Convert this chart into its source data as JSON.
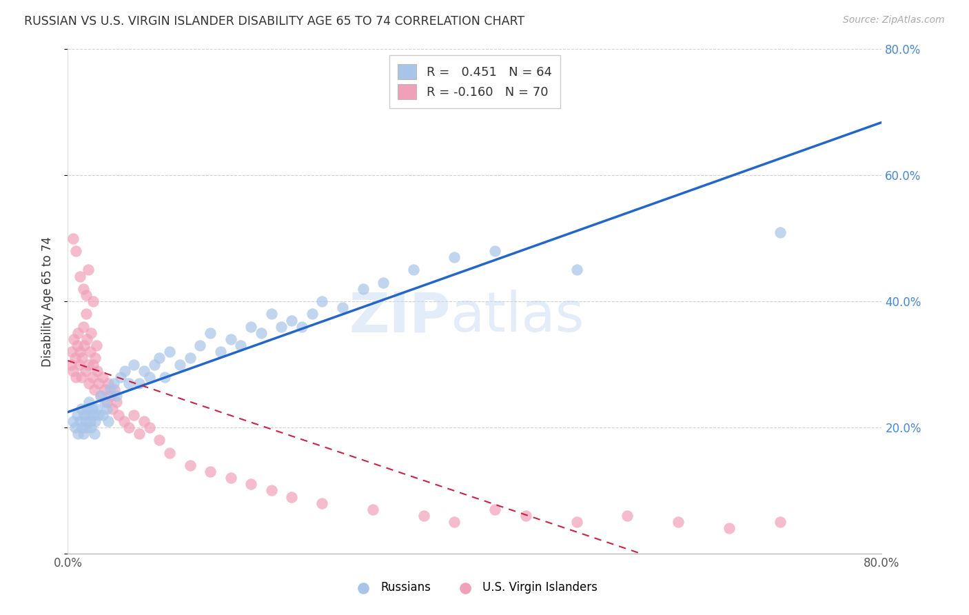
{
  "title": "RUSSIAN VS U.S. VIRGIN ISLANDER DISABILITY AGE 65 TO 74 CORRELATION CHART",
  "source": "Source: ZipAtlas.com",
  "ylabel": "Disability Age 65 to 74",
  "xlim": [
    0.0,
    0.8
  ],
  "ylim": [
    0.0,
    0.8
  ],
  "xticks": [
    0.0,
    0.1,
    0.2,
    0.3,
    0.4,
    0.5,
    0.6,
    0.7,
    0.8
  ],
  "xticklabels": [
    "0.0%",
    "",
    "",
    "",
    "",
    "",
    "",
    "",
    "80.0%"
  ],
  "yticks_right": [
    0.2,
    0.4,
    0.6,
    0.8
  ],
  "ytick_labels_right": [
    "20.0%",
    "40.0%",
    "60.0%",
    "80.0%"
  ],
  "russian_R": "0.451",
  "russian_N": 64,
  "virgin_R": "-0.160",
  "virgin_N": 70,
  "russian_color": "#a8c4e8",
  "virgin_color": "#f0a0b8",
  "russian_line_color": "#2266cc",
  "virgin_line_color": "#cc2244",
  "watermark_zip": "ZIP",
  "watermark_atlas": "atlas",
  "background_color": "#ffffff",
  "grid_color": "#cccccc",
  "russian_x": [
    0.005,
    0.007,
    0.009,
    0.01,
    0.012,
    0.013,
    0.014,
    0.015,
    0.016,
    0.017,
    0.018,
    0.019,
    0.02,
    0.021,
    0.022,
    0.023,
    0.024,
    0.025,
    0.026,
    0.027,
    0.028,
    0.03,
    0.032,
    0.034,
    0.036,
    0.038,
    0.04,
    0.042,
    0.045,
    0.048,
    0.052,
    0.056,
    0.06,
    0.065,
    0.07,
    0.075,
    0.08,
    0.085,
    0.09,
    0.095,
    0.1,
    0.11,
    0.12,
    0.13,
    0.14,
    0.15,
    0.16,
    0.17,
    0.18,
    0.19,
    0.2,
    0.21,
    0.22,
    0.23,
    0.24,
    0.25,
    0.27,
    0.29,
    0.31,
    0.34,
    0.38,
    0.42,
    0.5,
    0.7
  ],
  "russian_y": [
    0.21,
    0.2,
    0.22,
    0.19,
    0.21,
    0.23,
    0.2,
    0.19,
    0.22,
    0.21,
    0.2,
    0.23,
    0.22,
    0.24,
    0.21,
    0.2,
    0.23,
    0.22,
    0.19,
    0.21,
    0.23,
    0.22,
    0.25,
    0.22,
    0.24,
    0.23,
    0.21,
    0.26,
    0.27,
    0.25,
    0.28,
    0.29,
    0.27,
    0.3,
    0.27,
    0.29,
    0.28,
    0.3,
    0.31,
    0.28,
    0.32,
    0.3,
    0.31,
    0.33,
    0.35,
    0.32,
    0.34,
    0.33,
    0.36,
    0.35,
    0.38,
    0.36,
    0.37,
    0.36,
    0.38,
    0.4,
    0.39,
    0.42,
    0.43,
    0.45,
    0.47,
    0.48,
    0.45,
    0.51
  ],
  "virgin_x": [
    0.003,
    0.004,
    0.005,
    0.006,
    0.007,
    0.008,
    0.009,
    0.01,
    0.011,
    0.012,
    0.013,
    0.014,
    0.015,
    0.016,
    0.017,
    0.018,
    0.019,
    0.02,
    0.021,
    0.022,
    0.023,
    0.024,
    0.025,
    0.026,
    0.027,
    0.028,
    0.029,
    0.03,
    0.032,
    0.034,
    0.036,
    0.038,
    0.04,
    0.042,
    0.044,
    0.046,
    0.048,
    0.05,
    0.055,
    0.06,
    0.065,
    0.07,
    0.075,
    0.08,
    0.09,
    0.1,
    0.12,
    0.14,
    0.16,
    0.18,
    0.2,
    0.22,
    0.25,
    0.3,
    0.35,
    0.38,
    0.42,
    0.45,
    0.5,
    0.55,
    0.6,
    0.65,
    0.7,
    0.015,
    0.02,
    0.025,
    0.005,
    0.008,
    0.012,
    0.018
  ],
  "virgin_y": [
    0.3,
    0.32,
    0.29,
    0.34,
    0.31,
    0.28,
    0.33,
    0.35,
    0.3,
    0.32,
    0.28,
    0.31,
    0.36,
    0.33,
    0.29,
    0.38,
    0.34,
    0.3,
    0.27,
    0.32,
    0.35,
    0.28,
    0.3,
    0.26,
    0.31,
    0.33,
    0.29,
    0.27,
    0.25,
    0.28,
    0.26,
    0.24,
    0.27,
    0.25,
    0.23,
    0.26,
    0.24,
    0.22,
    0.21,
    0.2,
    0.22,
    0.19,
    0.21,
    0.2,
    0.18,
    0.16,
    0.14,
    0.13,
    0.12,
    0.11,
    0.1,
    0.09,
    0.08,
    0.07,
    0.06,
    0.05,
    0.07,
    0.06,
    0.05,
    0.06,
    0.05,
    0.04,
    0.05,
    0.42,
    0.45,
    0.4,
    0.5,
    0.48,
    0.44,
    0.41
  ]
}
